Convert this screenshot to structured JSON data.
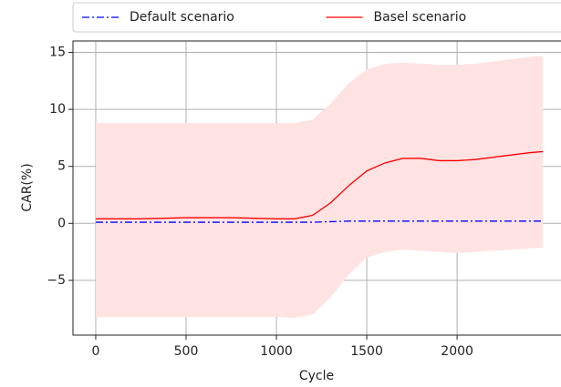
{
  "chart_data": {
    "type": "line",
    "x_label": "Cycle",
    "y_label": "CAR(%)",
    "x": [
      0,
      250,
      500,
      750,
      1000,
      1100,
      1200,
      1300,
      1400,
      1500,
      1600,
      1700,
      1800,
      1900,
      2000,
      2100,
      2200,
      2300,
      2400,
      2475
    ],
    "series": [
      {
        "name": "Default scenario",
        "color": "#0000ff",
        "dash": "dashdot",
        "values": [
          0.1,
          0.1,
          0.1,
          0.1,
          0.1,
          0.1,
          0.1,
          0.15,
          0.2,
          0.2,
          0.2,
          0.2,
          0.2,
          0.2,
          0.2,
          0.2,
          0.2,
          0.2,
          0.2,
          0.2
        ]
      },
      {
        "name": "Basel scenario",
        "color": "#ff0000",
        "dash": "solid",
        "values": [
          0.4,
          0.4,
          0.5,
          0.5,
          0.4,
          0.4,
          0.7,
          1.8,
          3.3,
          4.6,
          5.3,
          5.7,
          5.7,
          5.5,
          5.5,
          5.6,
          5.8,
          6.0,
          6.2,
          6.3
        ],
        "band_upper": [
          8.8,
          8.8,
          8.8,
          8.8,
          8.8,
          8.8,
          9.1,
          10.5,
          12.3,
          13.5,
          14.0,
          14.1,
          14.0,
          13.9,
          13.9,
          14.0,
          14.2,
          14.4,
          14.6,
          14.7
        ],
        "band_lower": [
          -8.2,
          -8.2,
          -8.2,
          -8.2,
          -8.2,
          -8.3,
          -8.0,
          -6.5,
          -4.5,
          -3.0,
          -2.5,
          -2.3,
          -2.4,
          -2.5,
          -2.6,
          -2.5,
          -2.4,
          -2.3,
          -2.2,
          -2.1
        ],
        "band_color": "#ffe3e3"
      }
    ],
    "xlim": [
      -126,
      2575
    ],
    "ylim": [
      -9.8,
      16
    ],
    "xticks": [
      0,
      500,
      1000,
      1500,
      2000
    ],
    "yticks": [
      {
        "value": -5,
        "label": "−5"
      },
      0,
      5,
      10,
      15
    ],
    "grid": true,
    "legend": "top"
  }
}
